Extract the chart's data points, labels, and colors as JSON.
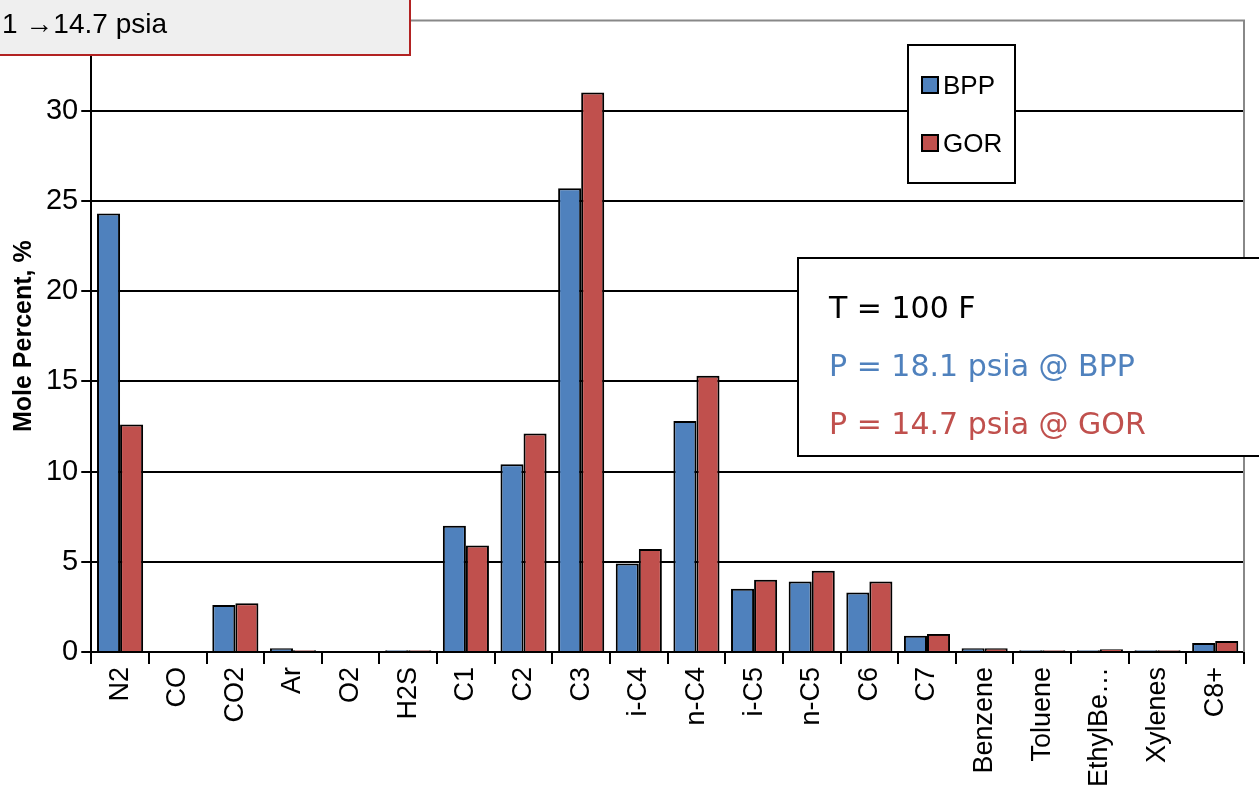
{
  "chart_data": {
    "type": "bar",
    "ylabel": "Mole Percent, %",
    "categories": [
      "N2",
      "CO",
      "CO2",
      "Ar",
      "O2",
      "H2S",
      "C1",
      "C2",
      "C3",
      "i-C4",
      "n-C4",
      "i-C5",
      "n-C5",
      "C6",
      "C7",
      "Benzene",
      "Toluene",
      "EthylBe…",
      "Xylenes",
      "C8+"
    ],
    "series": [
      {
        "name": "BPP",
        "color": "#4f81bd",
        "values": [
          24.3,
          0,
          2.6,
          0.2,
          0,
          0.1,
          7.0,
          10.4,
          25.7,
          4.9,
          12.8,
          3.5,
          3.9,
          3.3,
          0.9,
          0.2,
          0.1,
          0.1,
          0.1,
          0.5
        ]
      },
      {
        "name": "GOR",
        "color": "#c0504d",
        "values": [
          12.6,
          0,
          2.7,
          0.1,
          0,
          0.1,
          5.9,
          12.1,
          31.0,
          5.7,
          15.3,
          4.0,
          4.5,
          3.9,
          1.0,
          0.2,
          0.1,
          0.15,
          0.1,
          0.6
        ]
      }
    ],
    "ylim": [
      0,
      35
    ],
    "yticks": [
      0,
      5,
      10,
      15,
      20,
      25,
      30
    ],
    "grid": "y",
    "legend": "top right",
    "annotations": [
      "1 →14.7 psia",
      "T = 100 F",
      "P = 18.1 psia @ BPP",
      "P = 14.7 psia @ GOR"
    ]
  }
}
